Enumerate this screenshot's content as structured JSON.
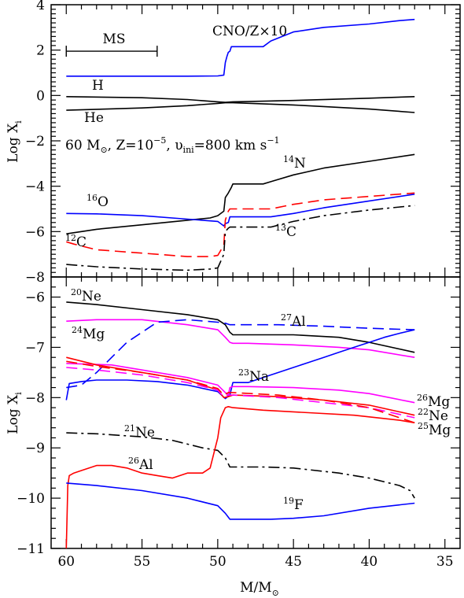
{
  "chart_data": [
    {
      "type": "line",
      "panel": "top",
      "ylabel": "Log X",
      "ylabel_sub": "i",
      "xlim": [
        61,
        34
      ],
      "ylim": [
        -8,
        4
      ],
      "yticks": [
        -8,
        -6,
        -4,
        -2,
        0,
        2,
        4
      ],
      "grid": false,
      "annotations": {
        "model_main": "60 M",
        "model_sun": "⊙",
        "model_z": ", Z=10",
        "model_z_exp": "−5",
        "model_v": ", υ",
        "model_v_sub": "ini",
        "model_rest": "=800 km s",
        "model_rest_exp": "−1",
        "ms_label": "MS"
      },
      "ms_bar": [
        60,
        54
      ],
      "series": [
        {
          "name": "CNO/Z×10",
          "color": "#0000ff",
          "dash": "solid",
          "x": [
            60,
            58,
            55,
            52,
            50,
            49.6,
            49.5,
            49.4,
            49.3,
            49.2,
            49.1,
            49.0,
            48.5,
            47,
            46.5,
            45,
            43,
            40,
            38,
            37
          ],
          "y": [
            0.85,
            0.85,
            0.85,
            0.85,
            0.86,
            0.9,
            1.45,
            1.7,
            1.9,
            1.95,
            2.15,
            2.15,
            2.15,
            2.15,
            2.4,
            2.8,
            3.0,
            3.15,
            3.3,
            3.35
          ]
        },
        {
          "name": "H",
          "color": "#000000",
          "dash": "solid",
          "x": [
            60,
            55,
            52,
            50,
            49.5,
            49,
            45,
            40,
            37
          ],
          "y": [
            -0.05,
            -0.1,
            -0.18,
            -0.28,
            -0.3,
            -0.28,
            -0.22,
            -0.12,
            -0.05
          ]
        },
        {
          "name": "He",
          "color": "#000000",
          "dash": "solid",
          "x": [
            60,
            55,
            52,
            50,
            49.5,
            49,
            45,
            40,
            37
          ],
          "y": [
            -0.65,
            -0.55,
            -0.45,
            -0.35,
            -0.32,
            -0.32,
            -0.42,
            -0.6,
            -0.75
          ]
        },
        {
          "name": "14N",
          "color": "#000000",
          "dash": "solid",
          "x": [
            60,
            58,
            55,
            52,
            50.5,
            50,
            49.6,
            49.5,
            49.3,
            49.1,
            49.0,
            48.5,
            47,
            46.5,
            45,
            43,
            40,
            37
          ],
          "y": [
            -6.1,
            -5.9,
            -5.7,
            -5.5,
            -5.4,
            -5.3,
            -5.1,
            -4.5,
            -4.3,
            -4.05,
            -3.9,
            -3.9,
            -3.9,
            -3.8,
            -3.5,
            -3.2,
            -2.9,
            -2.6
          ]
        },
        {
          "name": "16O",
          "color": "#0000ff",
          "dash": "solid",
          "x": [
            60,
            58,
            55,
            52,
            50,
            49.6,
            49.5,
            49.3,
            49.2,
            49,
            48,
            46.5,
            45,
            43,
            40,
            37
          ],
          "y": [
            -5.2,
            -5.22,
            -5.3,
            -5.45,
            -5.55,
            -5.75,
            -5.65,
            -5.6,
            -5.35,
            -5.35,
            -5.35,
            -5.35,
            -5.2,
            -4.95,
            -4.65,
            -4.35
          ]
        },
        {
          "name": "12C",
          "color": "#ff0000",
          "dash": "dashed",
          "x": [
            60,
            59.5,
            58,
            55,
            52,
            50.5,
            50,
            49.6,
            49.5,
            49.3,
            49.2,
            49,
            48,
            46.5,
            45,
            43,
            40,
            37
          ],
          "y": [
            -6.45,
            -6.55,
            -6.8,
            -6.95,
            -7.1,
            -7.1,
            -7.05,
            -6.6,
            -5.5,
            -5.1,
            -5.0,
            -5.0,
            -5.0,
            -5.0,
            -4.8,
            -4.6,
            -4.45,
            -4.3
          ]
        },
        {
          "name": "13C",
          "color": "#000000",
          "dash": "dashdot",
          "x": [
            60,
            58,
            55,
            52,
            50.5,
            50,
            49.6,
            49.5,
            49.3,
            49.2,
            49,
            48,
            46.5,
            45,
            43,
            40,
            37
          ],
          "y": [
            -7.45,
            -7.55,
            -7.65,
            -7.7,
            -7.65,
            -7.6,
            -7.0,
            -6.0,
            -5.85,
            -5.8,
            -5.8,
            -5.8,
            -5.8,
            -5.55,
            -5.3,
            -5.05,
            -4.85
          ]
        }
      ],
      "labels": {
        "cno": "CNO/Z×10",
        "h": "H",
        "he": "He",
        "n14_sup": "14",
        "n14": "N",
        "o16_sup": "16",
        "o16": "O",
        "c12_sup": "12",
        "c12": "C",
        "c13_sup": "13",
        "c13": "C"
      }
    },
    {
      "type": "line",
      "panel": "bottom",
      "xlabel": "M/M",
      "xlabel_sun": "⊙",
      "ylabel": "Log X",
      "ylabel_sub": "i",
      "xlim": [
        61,
        34
      ],
      "ylim": [
        -11,
        -5.6
      ],
      "xticks": [
        60,
        55,
        50,
        45,
        40,
        35
      ],
      "yticks": [
        -11,
        -10,
        -9,
        -8,
        -7,
        -6
      ],
      "grid": false,
      "series": [
        {
          "name": "20Ne",
          "color": "#000000",
          "dash": "solid",
          "x": [
            60,
            58,
            55,
            52,
            50,
            49.5,
            49.2,
            49,
            48,
            45,
            42,
            40,
            37
          ],
          "y": [
            -6.1,
            -6.15,
            -6.25,
            -6.35,
            -6.45,
            -6.55,
            -6.7,
            -6.75,
            -6.75,
            -6.75,
            -6.8,
            -6.9,
            -7.1
          ]
        },
        {
          "name": "24Mg",
          "color": "#ff00ff",
          "dash": "solid",
          "x": [
            60,
            58,
            55,
            52,
            50,
            49.5,
            49.2,
            49,
            48,
            45,
            42,
            40,
            37
          ],
          "y": [
            -6.48,
            -6.45,
            -6.45,
            -6.55,
            -6.65,
            -6.8,
            -6.9,
            -6.92,
            -6.92,
            -6.95,
            -7.0,
            -7.05,
            -7.2
          ]
        },
        {
          "name": "27Al",
          "color": "#0000ff",
          "dash": "dashed",
          "x": [
            60,
            59,
            58,
            57,
            56,
            55,
            54,
            52,
            50,
            49.5,
            49.2,
            49,
            46,
            43,
            40,
            37
          ],
          "y": [
            -7.8,
            -7.75,
            -7.5,
            -7.2,
            -6.9,
            -6.7,
            -6.5,
            -6.45,
            -6.5,
            -6.52,
            -6.55,
            -6.55,
            -6.55,
            -6.58,
            -6.62,
            -6.65
          ]
        },
        {
          "name": "23Na",
          "color": "#0000ff",
          "dash": "solid",
          "x": [
            60,
            59.8,
            59,
            58,
            56,
            54,
            52,
            50,
            49.5,
            49.2,
            49,
            48,
            47,
            46,
            45,
            44,
            43,
            42,
            41,
            40,
            39,
            38,
            37
          ],
          "y": [
            -8.05,
            -7.72,
            -7.68,
            -7.65,
            -7.65,
            -7.68,
            -7.75,
            -7.88,
            -8.02,
            -7.95,
            -7.7,
            -7.7,
            -7.6,
            -7.5,
            -7.4,
            -7.3,
            -7.2,
            -7.1,
            -7.0,
            -6.9,
            -6.8,
            -6.72,
            -6.65
          ]
        },
        {
          "name": "26Mg",
          "color": "#ff00ff",
          "dash": "solid",
          "x": [
            60,
            57,
            55,
            52,
            50,
            49.5,
            49.3,
            49.2,
            49,
            48,
            45,
            42,
            40,
            37
          ],
          "y": [
            -7.32,
            -7.35,
            -7.45,
            -7.6,
            -7.75,
            -7.9,
            -7.95,
            -7.8,
            -7.78,
            -7.78,
            -7.8,
            -7.85,
            -7.92,
            -8.1
          ]
        },
        {
          "name": "22Ne",
          "color": "#ff0000",
          "dash": "solid",
          "x": [
            60,
            58,
            55,
            52,
            50,
            49.6,
            49.3,
            49,
            46,
            43,
            40,
            37
          ],
          "y": [
            -7.2,
            -7.35,
            -7.5,
            -7.65,
            -7.85,
            -8.0,
            -7.98,
            -7.95,
            -7.98,
            -8.05,
            -8.15,
            -8.35
          ]
        },
        {
          "name": "25Mg",
          "color": "#ff00ff",
          "dash": "dashed",
          "x": [
            60,
            58,
            55,
            52,
            50,
            49.6,
            49.3,
            49,
            46,
            43,
            40,
            37
          ],
          "y": [
            -7.4,
            -7.45,
            -7.55,
            -7.7,
            -7.85,
            -7.98,
            -7.95,
            -7.95,
            -8.0,
            -8.1,
            -8.2,
            -8.4
          ]
        },
        {
          "name": "25Mg (red)",
          "color": "#ff0000",
          "dash": "dashed",
          "x": [
            60,
            58,
            55,
            52,
            50,
            49.6,
            49.3,
            49,
            46,
            43,
            40,
            37
          ],
          "y": [
            -7.28,
            -7.38,
            -7.5,
            -7.65,
            -7.82,
            -7.95,
            -7.9,
            -7.9,
            -7.95,
            -8.05,
            -8.2,
            -8.5
          ]
        },
        {
          "name": "21Ne",
          "color": "#000000",
          "dash": "dashdot",
          "x": [
            60,
            58,
            55,
            53,
            51,
            50,
            49.5,
            49.2,
            49,
            47,
            45,
            42,
            40,
            38,
            37.3,
            37
          ],
          "y": [
            -8.7,
            -8.72,
            -8.78,
            -8.85,
            -9.0,
            -9.05,
            -9.2,
            -9.38,
            -9.38,
            -9.38,
            -9.4,
            -9.5,
            -9.6,
            -9.75,
            -9.85,
            -10.0
          ]
        },
        {
          "name": "26Al",
          "color": "#ff0000",
          "dash": "solid",
          "x": [
            60,
            59.9,
            59.8,
            59.5,
            59,
            58,
            57,
            56,
            55,
            54,
            53,
            52,
            51,
            50.5,
            50,
            49.8,
            49.5,
            49.3,
            49,
            47,
            44,
            41,
            38,
            37
          ],
          "y": [
            -11.0,
            -9.75,
            -9.55,
            -9.5,
            -9.45,
            -9.35,
            -9.35,
            -9.4,
            -9.5,
            -9.55,
            -9.6,
            -9.5,
            -9.5,
            -9.4,
            -8.8,
            -8.4,
            -8.2,
            -8.18,
            -8.2,
            -8.25,
            -8.3,
            -8.35,
            -8.45,
            -8.5
          ]
        },
        {
          "name": "19F",
          "color": "#0000ff",
          "dash": "solid",
          "x": [
            60,
            58,
            55,
            52,
            50,
            49.5,
            49.2,
            49,
            47,
            46.5,
            45,
            43,
            40,
            37
          ],
          "y": [
            -9.7,
            -9.75,
            -9.85,
            -10.0,
            -10.15,
            -10.3,
            -10.42,
            -10.42,
            -10.42,
            -10.42,
            -10.4,
            -10.35,
            -10.2,
            -10.1
          ]
        }
      ],
      "labels": {
        "ne20_sup": "20",
        "ne20": "Ne",
        "mg24_sup": "24",
        "mg24": "Mg",
        "al27_sup": "27",
        "al27": "Al",
        "na23_sup": "23",
        "na23": "Na",
        "mg26_sup": "26",
        "mg26": "Mg",
        "ne22_sup": "22",
        "ne22": "Ne",
        "mg25_sup": "25",
        "mg25": "Mg",
        "ne21_sup": "21",
        "ne21": "Ne",
        "al26_sup": "26",
        "al26": "Al",
        "f19_sup": "19",
        "f19": "F"
      }
    }
  ]
}
